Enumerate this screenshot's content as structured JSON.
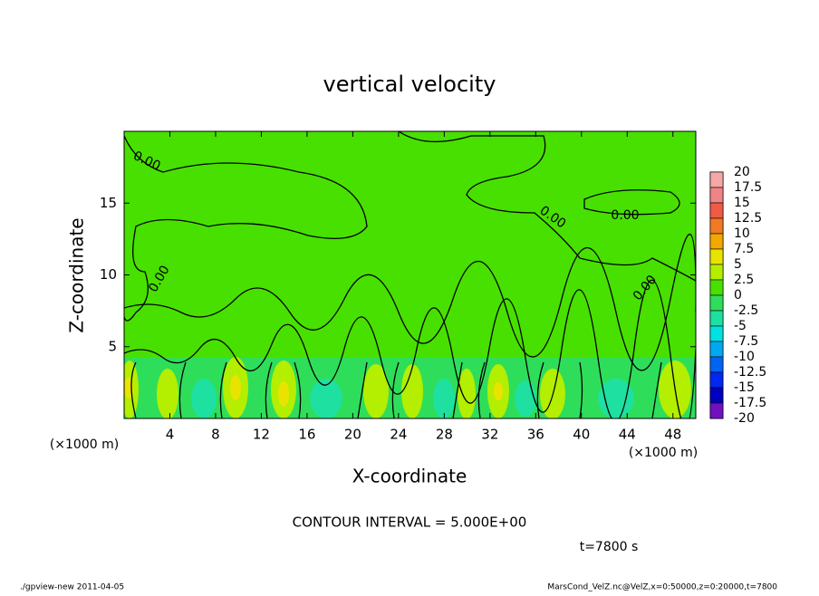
{
  "chart_data": {
    "type": "contour",
    "title": "vertical velocity",
    "x_label": "X-coordinate",
    "y_label": "Z-coordinate",
    "x_unit": "(×1000 m)",
    "y_unit": "(×1000 m)",
    "xlim": [
      0,
      50
    ],
    "ylim": [
      0,
      20
    ],
    "xticks": [
      4,
      8,
      12,
      16,
      20,
      24,
      28,
      32,
      36,
      40,
      44,
      48
    ],
    "yticks": [
      5,
      10,
      15
    ],
    "colorbar": {
      "levels": [
        20,
        17.5,
        15,
        12.5,
        10,
        7.5,
        5,
        2.5,
        0,
        -2.5,
        -5,
        -7.5,
        -10,
        -12.5,
        -15,
        -17.5,
        -20
      ],
      "colors": [
        "#f4a8a8",
        "#f08484",
        "#f05a46",
        "#f27a22",
        "#f2a800",
        "#e8e400",
        "#b4ee00",
        "#48e000",
        "#2ede5a",
        "#1ee0a0",
        "#00e2e2",
        "#00a8f2",
        "#0064f2",
        "#0028f0",
        "#0000c0",
        "#7010c0"
      ]
    },
    "contour_labels": [
      "0.00",
      "0.00",
      "0.00",
      "0.00",
      "0.00"
    ],
    "contour_interval": "CONTOUR INTERVAL = 5.000E+00",
    "time_label": "t=7800 s",
    "footer_left": "./gpview-new  2011-04-05",
    "footer_right": "MarsCond_VelZ.nc@VelZ,x=0:50000,z=0:20000,t=7800"
  }
}
